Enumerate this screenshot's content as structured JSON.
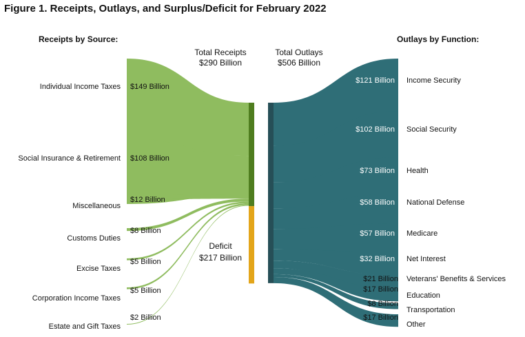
{
  "title": "Figure 1. Receipts, Outlays, and Surplus/Deficit for February 2022",
  "colors": {
    "receipts": "#8fbc5f",
    "receipts_bar": "#4f7d1f",
    "deficit": "#e3a51a",
    "outlays": "#2f6e77",
    "outlays_bar": "#264f57"
  },
  "chart_data": {
    "type": "sankey",
    "title": "Figure 1. Receipts, Outlays, and Surplus/Deficit for February 2022",
    "units": "Billion",
    "receipts_heading": "Receipts by Source:",
    "outlays_heading": "Outlays by Function:",
    "total_receipts": {
      "label": "Total Receipts",
      "value_label": "$290 Billion",
      "value": 290
    },
    "total_outlays": {
      "label": "Total Outlays",
      "value_label": "$506 Billion",
      "value": 506
    },
    "deficit": {
      "label": "Deficit",
      "value_label": "$217 Billion",
      "value": 217
    },
    "receipts": [
      {
        "name": "Individual Income Taxes",
        "value": 149,
        "value_label": "$149 Billion"
      },
      {
        "name": "Social Insurance & Retirement",
        "value": 108,
        "value_label": "$108 Billion"
      },
      {
        "name": "Miscellaneous",
        "value": 12,
        "value_label": "$12 Billion"
      },
      {
        "name": "Customs Duties",
        "value": 8,
        "value_label": "$8 Billion"
      },
      {
        "name": "Excise Taxes",
        "value": 5,
        "value_label": "$5 Billion"
      },
      {
        "name": "Corporation Income Taxes",
        "value": 5,
        "value_label": "$5 Billion"
      },
      {
        "name": "Estate and Gift Taxes",
        "value": 2,
        "value_label": "$2 Billion"
      }
    ],
    "outlays": [
      {
        "name": "Income Security",
        "value": 121,
        "value_label": "$121 Billion"
      },
      {
        "name": "Social Security",
        "value": 102,
        "value_label": "$102 Billion"
      },
      {
        "name": "Health",
        "value": 73,
        "value_label": "$73 Billion"
      },
      {
        "name": "National Defense",
        "value": 58,
        "value_label": "$58 Billion"
      },
      {
        "name": "Medicare",
        "value": 57,
        "value_label": "$57 Billion"
      },
      {
        "name": "Net Interest",
        "value": 32,
        "value_label": "$32 Billion"
      },
      {
        "name": "Veterans' Benefits & Services",
        "value": 21,
        "value_label": "$21 Billion"
      },
      {
        "name": "Education",
        "value": 17,
        "value_label": "$17 Billion"
      },
      {
        "name": "Transportation",
        "value": 8,
        "value_label": "$8 Billion"
      },
      {
        "name": "Other",
        "value": 17,
        "value_label": "$17 Billion"
      }
    ]
  }
}
